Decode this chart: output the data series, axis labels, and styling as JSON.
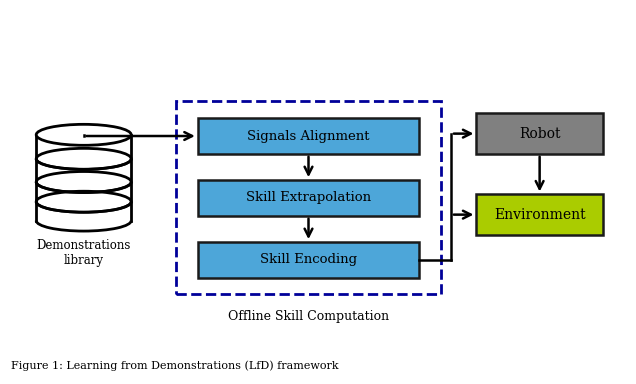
{
  "fig_width": 6.36,
  "fig_height": 3.84,
  "dpi": 100,
  "background_color": "#ffffff",
  "blue_box_color": "#4da6d9",
  "blue_box_edge": "#1a1a1a",
  "gray_box_color": "#808080",
  "gray_box_edge": "#1a1a1a",
  "green_box_color": "#aacc00",
  "green_box_edge": "#1a1a1a",
  "dashed_rect_color": "#000099",
  "box_texts": {
    "signals": "Signals Alignment",
    "extrapolation": "Skill Extrapolation",
    "encoding": "Skill Encoding",
    "robot": "Robot",
    "environment": "Environment"
  },
  "caption_offline": "Offline Skill Computation",
  "caption_demo": "Demonstrations\nlibrary",
  "figure_caption": "Figure 1: Learning from Demonstrations (LfD) framework"
}
